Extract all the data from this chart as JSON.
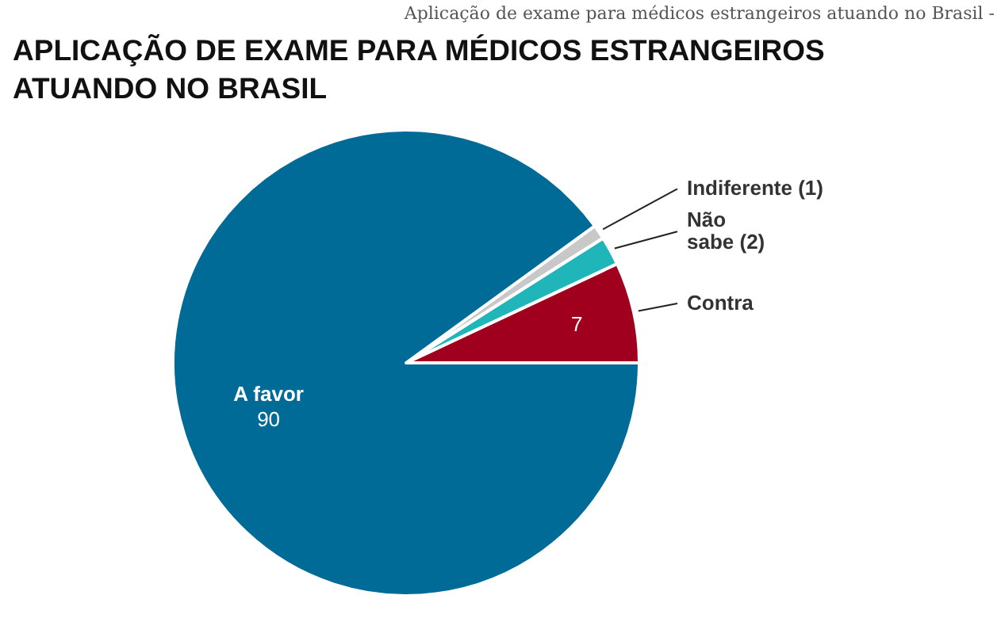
{
  "chart_data": {
    "type": "pie",
    "title": "APLICAÇÃO DE EXAME PARA MÉDICOS ESTRANGEIROS ATUANDO NO BRASIL",
    "annotations": [
      "Aplicação de exame para médicos estrangeiros atuando no Brasil -"
    ],
    "categories": [
      "Contra",
      "Não sabe",
      "Indiferente",
      "A favor"
    ],
    "values": [
      7,
      2,
      1,
      90
    ],
    "value_labels": [
      "7",
      "(2)",
      "(1)",
      "90"
    ],
    "colors": [
      "#a0001e",
      "#1fb5b9",
      "#c8c8c8",
      "#006b96"
    ]
  }
}
